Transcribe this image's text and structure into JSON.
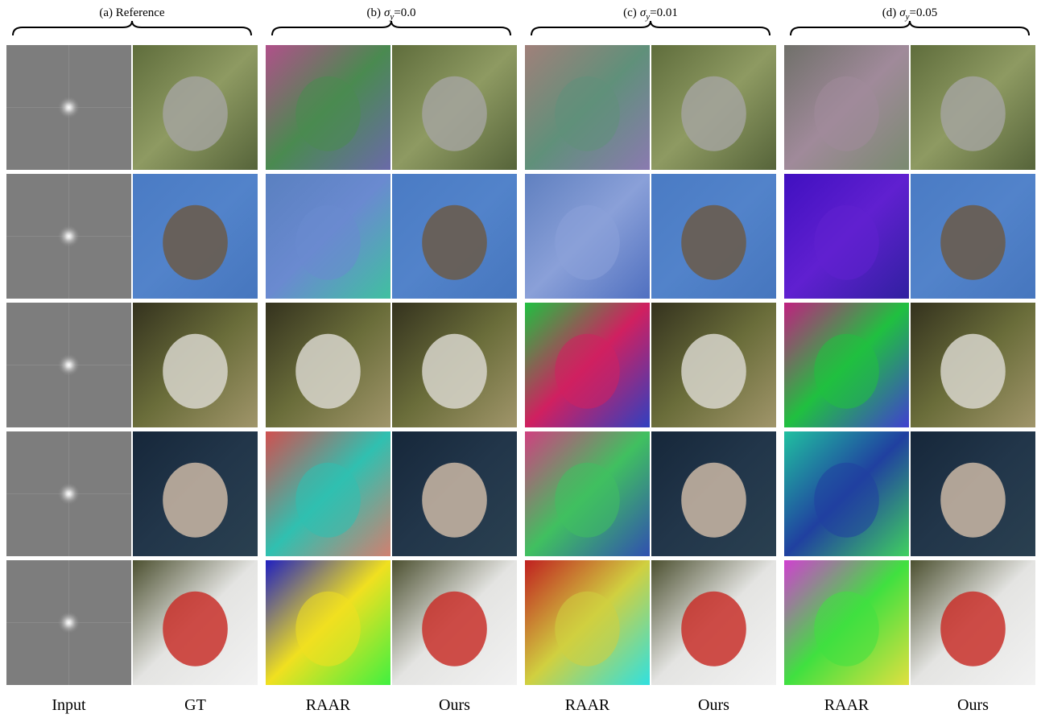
{
  "groups": [
    {
      "label": "(a) Reference"
    },
    {
      "label": "(b)",
      "symbol": "σ",
      "subscript": "y",
      "value": "=0.0"
    },
    {
      "label": "(c)",
      "symbol": "σ",
      "subscript": "y",
      "value": "=0.01"
    },
    {
      "label": "(d)",
      "symbol": "σ",
      "subscript": "y",
      "value": "=0.05"
    }
  ],
  "columns": [
    "Input",
    "GT",
    "RAAR",
    "Ours",
    "RAAR",
    "Ours",
    "RAAR",
    "Ours"
  ]
}
